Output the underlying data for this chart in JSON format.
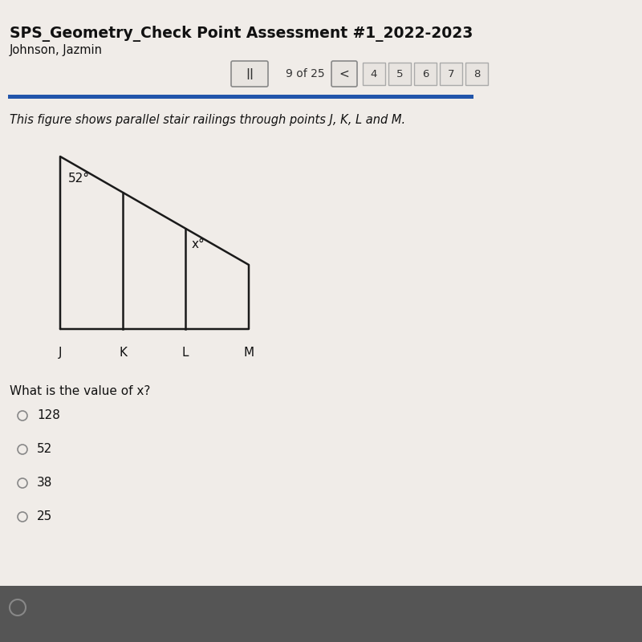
{
  "title": "SPS_Geometry_Check Point Assessment #1_2022-2023",
  "subtitle": "Johnson, Jazmin",
  "nav_text": "9 of 25",
  "nav_numbers": [
    "4",
    "5",
    "6",
    "7",
    "8"
  ],
  "question_text": "This figure shows parallel stair railings through points J, K, L and M.",
  "angle_52": "52°",
  "angle_x": "x°",
  "point_labels": [
    "J",
    "K",
    "L",
    "M"
  ],
  "question": "What is the value of x?",
  "choices": [
    "128",
    "52",
    "38",
    "25"
  ],
  "bg_color": "#d8d0c8",
  "panel_color": "#f0ece8",
  "header_color": "#1a1a1a",
  "blue_bar_color": "#2255aa",
  "shape_color": "#1a1a1a",
  "nav_box_color": "#e8e4e0",
  "nav_border_color": "#aaaaaa"
}
